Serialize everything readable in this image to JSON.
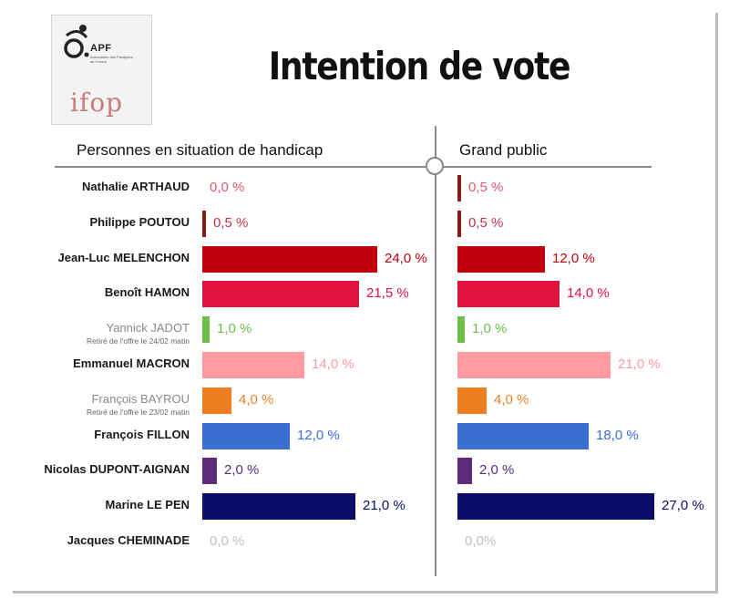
{
  "title": "Intention de vote",
  "logo": {
    "apf_text": "APF",
    "apf_sub": "Association des Paralysés de France",
    "ifop_text": "ifop"
  },
  "panels": {
    "left_title": "Personnes en situation de handicap",
    "right_title": "Grand public"
  },
  "colors": {
    "divider": "#8a8a8a"
  },
  "chart_data": {
    "type": "bar",
    "orientation": "horizontal",
    "title": "Intention de vote",
    "categories": [
      "Nathalie ARTHAUD",
      "Philippe POUTOU",
      "Jean-Luc MELENCHON",
      "Benoît HAMON",
      "Yannick JADOT",
      "Emmanuel MACRON",
      "François BAYROU",
      "François FILLON",
      "Nicolas DUPONT-AIGNAN",
      "Marine LE PEN",
      "Jacques CHEMINADE"
    ],
    "notes": [
      "",
      "",
      "",
      "",
      "Retiré de l'offre le 24/02 matin",
      "",
      "Retiré de l'offre le 23/02 matin",
      "",
      "",
      "",
      ""
    ],
    "faded": [
      false,
      false,
      false,
      false,
      true,
      false,
      true,
      false,
      false,
      false,
      false
    ],
    "colors": [
      "#8b1a1a",
      "#8b1a1a",
      "#c0000f",
      "#e0123e",
      "#6cc04a",
      "#ff9aa2",
      "#ef7d22",
      "#3a6fd1",
      "#5e2a7a",
      "#0d0d6b",
      "#bfbfbf"
    ],
    "label_colors": [
      "#e15a6e",
      "#c8334a",
      "#c0000f",
      "#e0123e",
      "#6cc04a",
      "#ff9aa2",
      "#ef7d22",
      "#3a6fd1",
      "#5e2a7a",
      "#0d0d6b",
      "#bfbfbf"
    ],
    "series": [
      {
        "name": "Personnes en situation de handicap",
        "values": [
          0.0,
          0.5,
          24.0,
          21.5,
          1.0,
          14.0,
          4.0,
          12.0,
          2.0,
          21.0,
          0.0
        ],
        "labels": [
          "0,0 %",
          "0,5 %",
          "24,0 %",
          "21,5 %",
          "1,0 %",
          "14,0 %",
          "4,0 %",
          "12,0 %",
          "2,0 %",
          "21,0 %",
          "0,0 %"
        ]
      },
      {
        "name": "Grand public",
        "values": [
          0.5,
          0.5,
          12.0,
          14.0,
          1.0,
          21.0,
          4.0,
          18.0,
          2.0,
          27.0,
          0.0
        ],
        "labels": [
          "0,5 %",
          "0,5 %",
          "12,0 %",
          "14,0 %",
          "1,0 %",
          "21,0 %",
          "4,0 %",
          "18,0 %",
          "2,0 %",
          "27,0 %",
          "0,0%"
        ]
      }
    ],
    "xlim": [
      0,
      27
    ]
  }
}
